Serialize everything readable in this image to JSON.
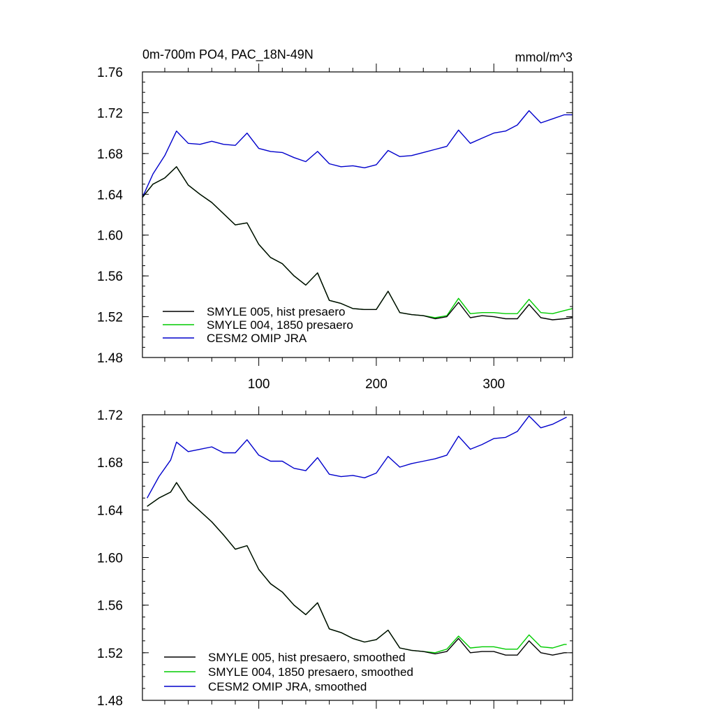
{
  "chart_data": [
    {
      "type": "line",
      "title": "0m-700m PO4, PAC_18N-49N",
      "units": "mmol/m^3",
      "xlim": [
        1,
        367
      ],
      "ylim": [
        1.48,
        1.76
      ],
      "yticks": [
        1.48,
        1.52,
        1.56,
        1.6,
        1.64,
        1.68,
        1.72,
        1.76
      ],
      "ytick_labels": [
        "1.48",
        "1.52",
        "1.56",
        "1.60",
        "1.64",
        "1.68",
        "1.72",
        "1.76"
      ],
      "xticks": [
        100,
        200,
        300
      ],
      "xtick_labels": [
        "100",
        "200",
        "300"
      ],
      "legend_position": "bottom-left",
      "series": [
        {
          "name": "SMYLE 005, hist presaero",
          "color": "#000000",
          "x": [
            1,
            10,
            20,
            30,
            40,
            50,
            60,
            70,
            80,
            90,
            100,
            110,
            120,
            130,
            140,
            150,
            160,
            170,
            180,
            190,
            200,
            210,
            220,
            230,
            240,
            250,
            260,
            270,
            280,
            290,
            300,
            310,
            320,
            330,
            340,
            350,
            360,
            367
          ],
          "y": [
            1.637,
            1.65,
            1.656,
            1.667,
            1.649,
            1.64,
            1.632,
            1.621,
            1.61,
            1.612,
            1.591,
            1.578,
            1.572,
            1.56,
            1.551,
            1.563,
            1.536,
            1.533,
            1.528,
            1.527,
            1.527,
            1.545,
            1.524,
            1.522,
            1.521,
            1.518,
            1.52,
            1.534,
            1.519,
            1.521,
            1.52,
            1.518,
            1.518,
            1.532,
            1.519,
            1.517,
            1.518,
            1.519
          ]
        },
        {
          "name": "SMYLE 004, 1850 presaero",
          "color": "#00cc00",
          "x": [
            1,
            10,
            20,
            30,
            40,
            50,
            60,
            70,
            80,
            90,
            100,
            110,
            120,
            130,
            140,
            150,
            160,
            170,
            180,
            190,
            200,
            210,
            220,
            230,
            240,
            250,
            260,
            270,
            280,
            290,
            300,
            310,
            320,
            330,
            340,
            350,
            360,
            367
          ],
          "y": [
            1.637,
            1.65,
            1.656,
            1.667,
            1.649,
            1.64,
            1.632,
            1.621,
            1.61,
            1.612,
            1.591,
            1.578,
            1.572,
            1.56,
            1.551,
            1.563,
            1.536,
            1.533,
            1.528,
            1.527,
            1.527,
            1.545,
            1.524,
            1.522,
            1.521,
            1.519,
            1.521,
            1.538,
            1.523,
            1.524,
            1.524,
            1.523,
            1.523,
            1.537,
            1.524,
            1.523,
            1.526,
            1.528
          ]
        },
        {
          "name": "CESM2 OMIP JRA",
          "color": "#0000cc",
          "x": [
            1,
            10,
            20,
            30,
            40,
            50,
            60,
            70,
            80,
            90,
            100,
            110,
            120,
            130,
            140,
            150,
            160,
            170,
            180,
            190,
            200,
            210,
            220,
            230,
            240,
            250,
            260,
            270,
            280,
            290,
            300,
            310,
            320,
            330,
            340,
            350,
            360,
            367
          ],
          "y": [
            1.637,
            1.66,
            1.678,
            1.702,
            1.69,
            1.689,
            1.692,
            1.689,
            1.688,
            1.7,
            1.685,
            1.682,
            1.681,
            1.676,
            1.672,
            1.682,
            1.67,
            1.667,
            1.668,
            1.666,
            1.669,
            1.683,
            1.677,
            1.678,
            1.681,
            1.684,
            1.687,
            1.703,
            1.69,
            1.695,
            1.7,
            1.702,
            1.708,
            1.722,
            1.71,
            1.714,
            1.718,
            1.718
          ]
        }
      ]
    },
    {
      "type": "line",
      "title": "",
      "xlim": [
        1,
        367
      ],
      "ylim": [
        1.48,
        1.72
      ],
      "yticks": [
        1.48,
        1.52,
        1.56,
        1.6,
        1.64,
        1.68,
        1.72
      ],
      "ytick_labels": [
        "1.48",
        "1.52",
        "1.56",
        "1.60",
        "1.64",
        "1.68",
        "1.72"
      ],
      "xticks": [
        100,
        200,
        300
      ],
      "xtick_labels": [],
      "legend_position": "bottom-left",
      "series": [
        {
          "name": "SMYLE 005, hist presaero, smoothed",
          "color": "#000000",
          "x": [
            5,
            15,
            25,
            30,
            40,
            50,
            60,
            70,
            80,
            90,
            100,
            110,
            120,
            130,
            140,
            150,
            160,
            170,
            180,
            190,
            200,
            210,
            220,
            230,
            240,
            250,
            260,
            270,
            280,
            290,
            300,
            310,
            320,
            330,
            340,
            350,
            360,
            362
          ],
          "y": [
            1.643,
            1.65,
            1.655,
            1.663,
            1.648,
            1.639,
            1.63,
            1.619,
            1.607,
            1.61,
            1.59,
            1.578,
            1.571,
            1.56,
            1.552,
            1.562,
            1.54,
            1.537,
            1.532,
            1.529,
            1.531,
            1.539,
            1.524,
            1.522,
            1.521,
            1.519,
            1.521,
            1.532,
            1.52,
            1.521,
            1.521,
            1.518,
            1.518,
            1.53,
            1.52,
            1.518,
            1.52,
            1.52
          ]
        },
        {
          "name": "SMYLE 004, 1850 presaero, smoothed",
          "color": "#00cc00",
          "x": [
            5,
            15,
            25,
            30,
            40,
            50,
            60,
            70,
            80,
            90,
            100,
            110,
            120,
            130,
            140,
            150,
            160,
            170,
            180,
            190,
            200,
            210,
            220,
            230,
            240,
            250,
            260,
            270,
            280,
            290,
            300,
            310,
            320,
            330,
            340,
            350,
            360,
            362
          ],
          "y": [
            1.643,
            1.65,
            1.655,
            1.663,
            1.648,
            1.639,
            1.63,
            1.619,
            1.607,
            1.61,
            1.59,
            1.578,
            1.571,
            1.56,
            1.552,
            1.562,
            1.54,
            1.537,
            1.532,
            1.529,
            1.531,
            1.539,
            1.524,
            1.522,
            1.521,
            1.52,
            1.523,
            1.534,
            1.524,
            1.525,
            1.525,
            1.523,
            1.523,
            1.535,
            1.525,
            1.524,
            1.527,
            1.527
          ]
        },
        {
          "name": "CESM2 OMIP JRA, smoothed",
          "color": "#0000cc",
          "x": [
            5,
            15,
            25,
            30,
            40,
            50,
            60,
            70,
            80,
            90,
            100,
            110,
            120,
            130,
            140,
            150,
            160,
            170,
            180,
            190,
            200,
            210,
            220,
            230,
            240,
            250,
            260,
            270,
            280,
            290,
            300,
            310,
            320,
            330,
            340,
            350,
            360,
            362
          ],
          "y": [
            1.65,
            1.668,
            1.682,
            1.697,
            1.689,
            1.691,
            1.693,
            1.688,
            1.688,
            1.699,
            1.686,
            1.681,
            1.681,
            1.675,
            1.673,
            1.684,
            1.67,
            1.668,
            1.669,
            1.667,
            1.671,
            1.685,
            1.676,
            1.679,
            1.681,
            1.683,
            1.686,
            1.702,
            1.691,
            1.695,
            1.7,
            1.701,
            1.706,
            1.719,
            1.709,
            1.712,
            1.717,
            1.718
          ]
        }
      ]
    }
  ]
}
